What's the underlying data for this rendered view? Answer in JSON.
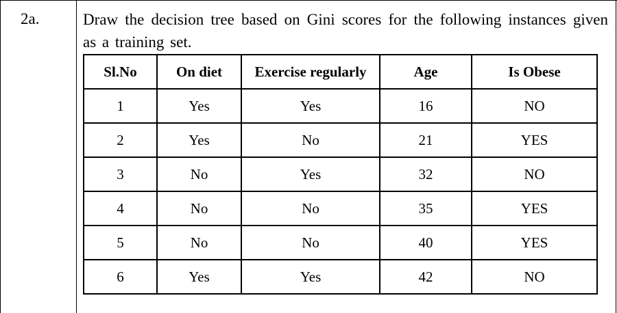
{
  "question": {
    "number": "2a.",
    "text": "Draw the decision tree based on Gini scores for the following instances given as a training set."
  },
  "table": {
    "headers": [
      "Sl.No",
      "On diet",
      "Exercise regularly",
      "Age",
      "Is Obese"
    ],
    "rows": [
      [
        "1",
        "Yes",
        "Yes",
        "16",
        "NO"
      ],
      [
        "2",
        "Yes",
        "No",
        "21",
        "YES"
      ],
      [
        "3",
        "No",
        "Yes",
        "32",
        "NO"
      ],
      [
        "4",
        "No",
        "No",
        "35",
        "YES"
      ],
      [
        "5",
        "No",
        "No",
        "40",
        "YES"
      ],
      [
        "6",
        "Yes",
        "Yes",
        "42",
        "NO"
      ]
    ]
  }
}
